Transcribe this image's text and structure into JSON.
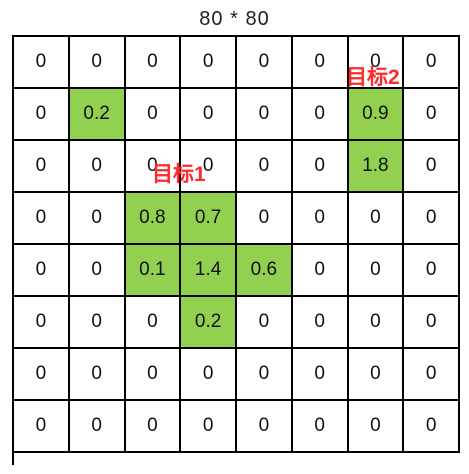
{
  "title": "80 * 80",
  "grid": [
    [
      "0",
      "0",
      "0",
      "0",
      "0",
      "0",
      "0",
      "0"
    ],
    [
      "0",
      "0.2",
      "0",
      "0",
      "0",
      "0",
      "0.9",
      "0"
    ],
    [
      "0",
      "0",
      "0",
      "0",
      "0",
      "0",
      "1.8",
      "0"
    ],
    [
      "0",
      "0",
      "0.8",
      "0.7",
      "0",
      "0",
      "0",
      "0"
    ],
    [
      "0",
      "0",
      "0.1",
      "1.4",
      "0.6",
      "0",
      "0",
      "0"
    ],
    [
      "0",
      "0",
      "0",
      "0.2",
      "0",
      "0",
      "0",
      "0"
    ],
    [
      "0",
      "0",
      "0",
      "0",
      "0",
      "0",
      "0",
      "0"
    ],
    [
      "0",
      "0",
      "0",
      "0",
      "0",
      "0",
      "0",
      "0"
    ]
  ],
  "highlighted": [
    [
      1,
      1
    ],
    [
      1,
      6
    ],
    [
      2,
      6
    ],
    [
      3,
      2
    ],
    [
      3,
      3
    ],
    [
      4,
      2
    ],
    [
      4,
      3
    ],
    [
      4,
      4
    ],
    [
      5,
      3
    ]
  ],
  "highlight_color": "#92d050",
  "labels": {
    "target1": "目标1",
    "target2": "目标2"
  },
  "label_color": "#ff2a2a"
}
